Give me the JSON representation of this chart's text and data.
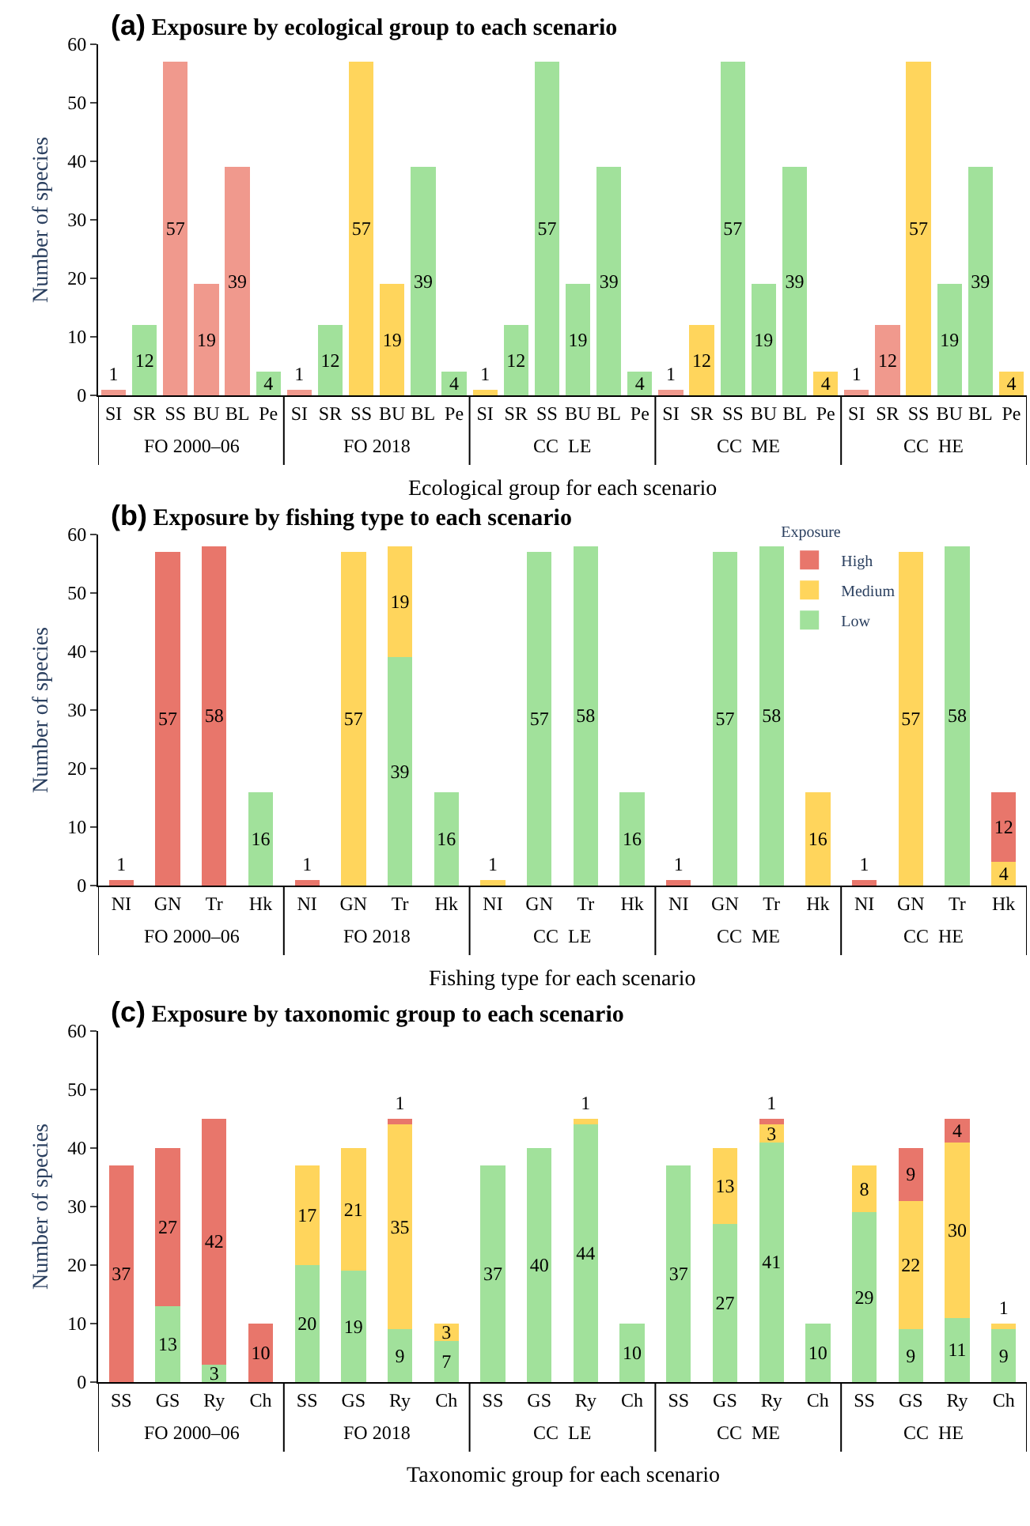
{
  "chart_data": [
    {
      "type": "bar",
      "stacked": true,
      "title": "(a) Exposure by ecological group to each scenario",
      "xlabel": "Ecological group for each scenario",
      "ylabel": "Number of species",
      "categories": [
        "SI",
        "SR",
        "SS",
        "BU",
        "BL",
        "Pe",
        "SI",
        "SR",
        "SS",
        "BU",
        "BL",
        "Pe",
        "SI",
        "SR",
        "SS",
        "BU",
        "BL",
        "Pe",
        "SI",
        "SR",
        "SS",
        "BU",
        "BL",
        "Pe",
        "SI",
        "SR",
        "SS",
        "BU",
        "BL",
        "Pe"
      ],
      "annotations": [
        "FO 2000–06",
        "FO 2018",
        "CC  LE",
        "CC  ME",
        "CC  HE"
      ],
      "series": [
        {
          "color": "#a1e19b",
          "values": [
            null,
            12,
            null,
            null,
            null,
            4,
            null,
            12,
            null,
            null,
            39,
            4,
            null,
            12,
            57,
            19,
            39,
            4,
            null,
            null,
            57,
            19,
            39,
            null,
            null,
            null,
            null,
            19,
            39,
            null
          ]
        },
        {
          "color": "#ffd55c",
          "values": [
            null,
            null,
            null,
            null,
            null,
            null,
            null,
            null,
            57,
            19,
            null,
            null,
            1,
            null,
            null,
            null,
            null,
            null,
            null,
            12,
            null,
            null,
            null,
            4,
            null,
            null,
            57,
            null,
            null,
            4
          ]
        },
        {
          "color": "#f0998d",
          "values": [
            1,
            null,
            57,
            19,
            39,
            null,
            1,
            null,
            null,
            null,
            null,
            null,
            null,
            null,
            null,
            null,
            null,
            null,
            1,
            null,
            null,
            null,
            null,
            null,
            1,
            12,
            null,
            null,
            null,
            null
          ]
        }
      ],
      "ylim": [
        0,
        60
      ],
      "yticks": [
        0,
        10,
        20,
        30,
        40,
        50,
        60
      ],
      "data_labels": true,
      "grid": false
    },
    {
      "type": "bar",
      "stacked": true,
      "title": "(b) Exposure by fishing type to each scenario",
      "xlabel": "Fishing type for each scenario",
      "ylabel": "Number of species",
      "legend_title": "Exposure",
      "legend": "top right",
      "categories": [
        "NI",
        "GN",
        "Tr",
        "Hk",
        "NI",
        "GN",
        "Tr",
        "Hk",
        "NI",
        "GN",
        "Tr",
        "Hk",
        "NI",
        "GN",
        "Tr",
        "Hk",
        "NI",
        "GN",
        "Tr",
        "Hk"
      ],
      "annotations": [
        "FO 2000–06",
        "FO 2018",
        "CC  LE",
        "CC  ME",
        "CC  HE"
      ],
      "series": [
        {
          "name": "Low",
          "color": "#a1e19b",
          "values": [
            null,
            null,
            null,
            16,
            null,
            null,
            39,
            16,
            null,
            57,
            58,
            16,
            null,
            57,
            58,
            null,
            null,
            null,
            58,
            null
          ]
        },
        {
          "name": "Medium",
          "color": "#ffd55c",
          "values": [
            null,
            null,
            null,
            null,
            null,
            57,
            19,
            null,
            1,
            null,
            null,
            null,
            null,
            null,
            null,
            16,
            null,
            57,
            null,
            4
          ]
        },
        {
          "name": "High",
          "color": "#e8766b",
          "values": [
            1,
            57,
            58,
            null,
            1,
            null,
            null,
            null,
            null,
            null,
            null,
            null,
            1,
            null,
            null,
            null,
            1,
            null,
            null,
            12
          ]
        }
      ],
      "ylim": [
        0,
        60
      ],
      "yticks": [
        0,
        10,
        20,
        30,
        40,
        50,
        60
      ],
      "data_labels": true,
      "grid": false
    },
    {
      "type": "bar",
      "stacked": true,
      "title": "(c) Exposure by taxonomic group to each scenario",
      "xlabel": "Taxonomic group for each scenario",
      "ylabel": "Number of species",
      "categories": [
        "SS",
        "GS",
        "Ry",
        "Ch",
        "SS",
        "GS",
        "Ry",
        "Ch",
        "SS",
        "GS",
        "Ry",
        "Ch",
        "SS",
        "GS",
        "Ry",
        "Ch",
        "SS",
        "GS",
        "Ry",
        "Ch"
      ],
      "annotations": [
        "FO 2000–06",
        "FO 2018",
        "CC  LE",
        "CC  ME",
        "CC  HE"
      ],
      "series": [
        {
          "color": "#a1e19b",
          "values": [
            null,
            13,
            3,
            null,
            20,
            19,
            9,
            7,
            37,
            40,
            44,
            10,
            37,
            27,
            41,
            10,
            29,
            9,
            11,
            9
          ]
        },
        {
          "color": "#ffd55c",
          "values": [
            null,
            null,
            null,
            null,
            17,
            21,
            35,
            3,
            null,
            null,
            1,
            null,
            null,
            13,
            3,
            null,
            8,
            22,
            30,
            1
          ]
        },
        {
          "color": "#e8766b",
          "values": [
            37,
            27,
            42,
            10,
            null,
            null,
            1,
            null,
            null,
            null,
            null,
            null,
            null,
            null,
            1,
            null,
            null,
            9,
            4,
            null
          ]
        }
      ],
      "ylim": [
        0,
        60
      ],
      "yticks": [
        0,
        10,
        20,
        30,
        40,
        50,
        60
      ],
      "data_labels": true,
      "grid": false
    }
  ]
}
